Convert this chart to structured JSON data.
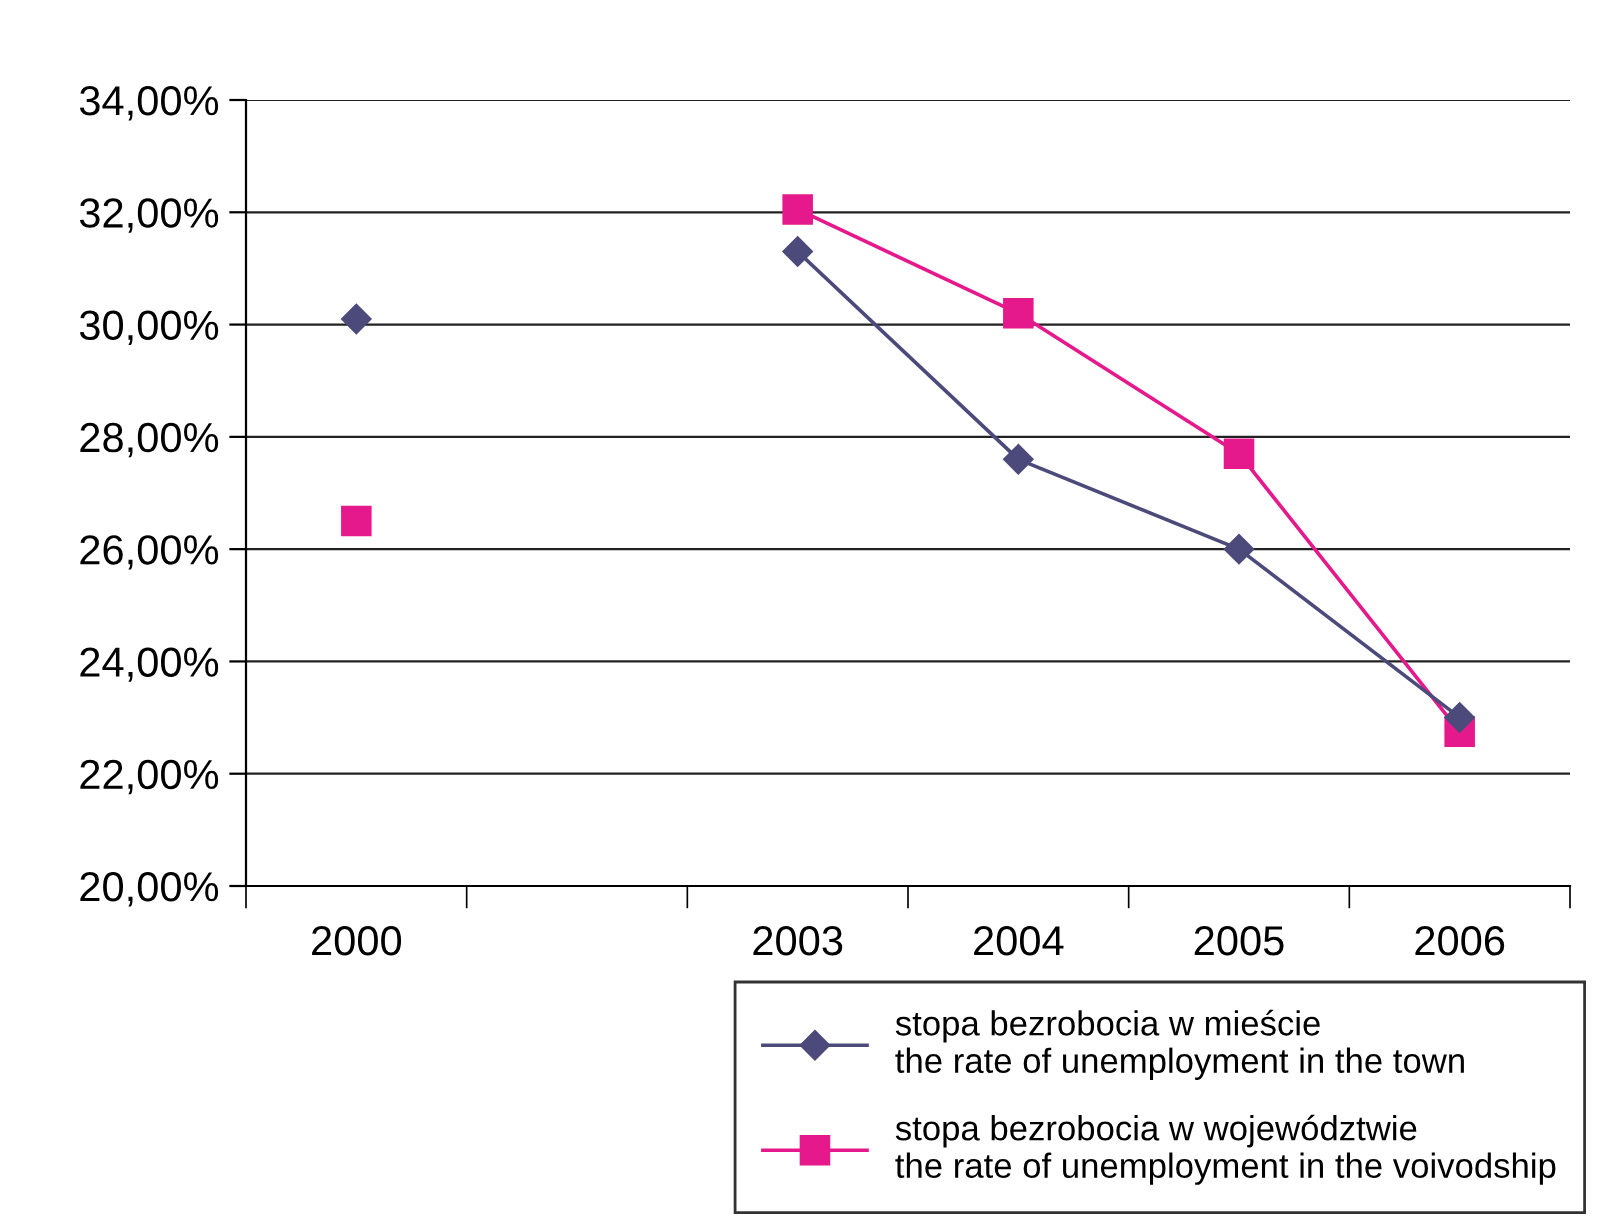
{
  "chart_data": {
    "type": "line",
    "categories": [
      "2000",
      null,
      "2003",
      "2004",
      "2005",
      "2006"
    ],
    "series": [
      {
        "name": "stopa bezrobocia w mieście\nthe rate of unemployment in the town",
        "color": "#4b4a7a",
        "marker": "diamond",
        "values": [
          30.1,
          null,
          31.3,
          27.6,
          26.0,
          23.0
        ]
      },
      {
        "name": "stopa bezrobocia w województwie\nthe rate of unemployment in the voivodship",
        "color": "#e6198c",
        "marker": "square",
        "values": [
          26.5,
          null,
          32.05,
          30.2,
          27.7,
          22.75
        ]
      }
    ],
    "ylim": [
      20,
      34
    ],
    "yticks": [
      {
        "value": 20,
        "label": "20,00%"
      },
      {
        "value": 22,
        "label": "22,00%"
      },
      {
        "value": 24,
        "label": "24,00%"
      },
      {
        "value": 26,
        "label": "26,00%"
      },
      {
        "value": 28,
        "label": "28,00%"
      },
      {
        "value": 30,
        "label": "30,00%"
      },
      {
        "value": 32,
        "label": "32,00%"
      },
      {
        "value": 34,
        "label": "34,00%"
      }
    ],
    "grid": "y",
    "legend": "bottom right"
  }
}
